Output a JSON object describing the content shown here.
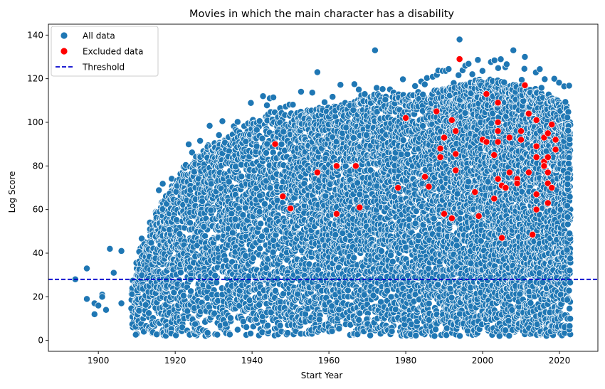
{
  "chart_data": {
    "type": "scatter",
    "title": "Movies in which the main character has a disability",
    "xlabel": "Start Year",
    "ylabel": "Log Score",
    "xlim": [
      1887,
      2030
    ],
    "ylim": [
      -5,
      145
    ],
    "xticks": [
      "1900",
      "1920",
      "1940",
      "1960",
      "1980",
      "2000",
      "2020"
    ],
    "yticks": [
      "0",
      "20",
      "40",
      "60",
      "80",
      "100",
      "120",
      "140"
    ],
    "grid": false,
    "legend_position": "top-left",
    "legend": [
      {
        "label": "All data",
        "color": "#1f77b4",
        "marker": "circle"
      },
      {
        "label": "Excluded data",
        "color": "#ff0000",
        "marker": "circle"
      },
      {
        "label": "Threshold",
        "color": "#0000cc",
        "marker": "dashed-line"
      }
    ],
    "threshold": {
      "y": 28,
      "color": "#0000cc",
      "style": "dashed"
    },
    "series": [
      {
        "name": "Excluded data",
        "color": "#ff0000",
        "points": [
          [
            1946,
            90
          ],
          [
            1948,
            66
          ],
          [
            1950,
            60.5
          ],
          [
            1957,
            77
          ],
          [
            1962,
            80
          ],
          [
            1962,
            58
          ],
          [
            1967,
            80
          ],
          [
            1968,
            61
          ],
          [
            1978,
            70
          ],
          [
            1980,
            102
          ],
          [
            1985,
            75
          ],
          [
            1986,
            70.5
          ],
          [
            1988,
            105
          ],
          [
            1989,
            88
          ],
          [
            1989,
            84
          ],
          [
            1990,
            93
          ],
          [
            1990,
            58
          ],
          [
            1992,
            101
          ],
          [
            1992,
            56
          ],
          [
            1993,
            85.5
          ],
          [
            1993,
            78
          ],
          [
            1993,
            96
          ],
          [
            1994,
            129
          ],
          [
            1998,
            68
          ],
          [
            1999,
            57
          ],
          [
            2000,
            92
          ],
          [
            2001,
            113
          ],
          [
            2001,
            91
          ],
          [
            2003,
            85
          ],
          [
            2003,
            65
          ],
          [
            2004,
            100
          ],
          [
            2004,
            96
          ],
          [
            2004,
            91
          ],
          [
            2004,
            74
          ],
          [
            2004,
            109
          ],
          [
            2005,
            71
          ],
          [
            2005,
            47
          ],
          [
            2006,
            70
          ],
          [
            2007,
            93
          ],
          [
            2007,
            77
          ],
          [
            2009,
            74
          ],
          [
            2009,
            72
          ],
          [
            2010,
            96
          ],
          [
            2010,
            92
          ],
          [
            2011,
            117
          ],
          [
            2012,
            104
          ],
          [
            2012,
            77
          ],
          [
            2013,
            48.5
          ],
          [
            2014,
            101
          ],
          [
            2014,
            89
          ],
          [
            2014,
            84
          ],
          [
            2014,
            67
          ],
          [
            2014,
            60
          ],
          [
            2016,
            93
          ],
          [
            2016,
            82
          ],
          [
            2016,
            80
          ],
          [
            2017,
            95
          ],
          [
            2017,
            84
          ],
          [
            2017,
            77
          ],
          [
            2017,
            72
          ],
          [
            2017,
            63
          ],
          [
            2018,
            99
          ],
          [
            2018,
            70
          ],
          [
            2019,
            92
          ],
          [
            2019,
            87.5
          ]
        ]
      }
    ],
    "all_data_description": {
      "name": "All data",
      "color": "#1f77b4",
      "x_range": [
        1894,
        2023
      ],
      "y_range": [
        2,
        138
      ],
      "outliers": [
        [
          1894,
          28
        ],
        [
          1897,
          33
        ],
        [
          1897,
          19
        ],
        [
          1899,
          12
        ],
        [
          1899,
          17
        ],
        [
          1900,
          16
        ],
        [
          1901,
          21
        ],
        [
          1901,
          20
        ],
        [
          1902,
          14
        ],
        [
          1903,
          42
        ],
        [
          1904,
          31
        ],
        [
          1906,
          41
        ],
        [
          1906,
          17
        ],
        [
          1972,
          133
        ],
        [
          1994,
          138
        ],
        [
          2008,
          133
        ],
        [
          2011,
          130
        ],
        [
          1957,
          123
        ]
      ]
    }
  }
}
